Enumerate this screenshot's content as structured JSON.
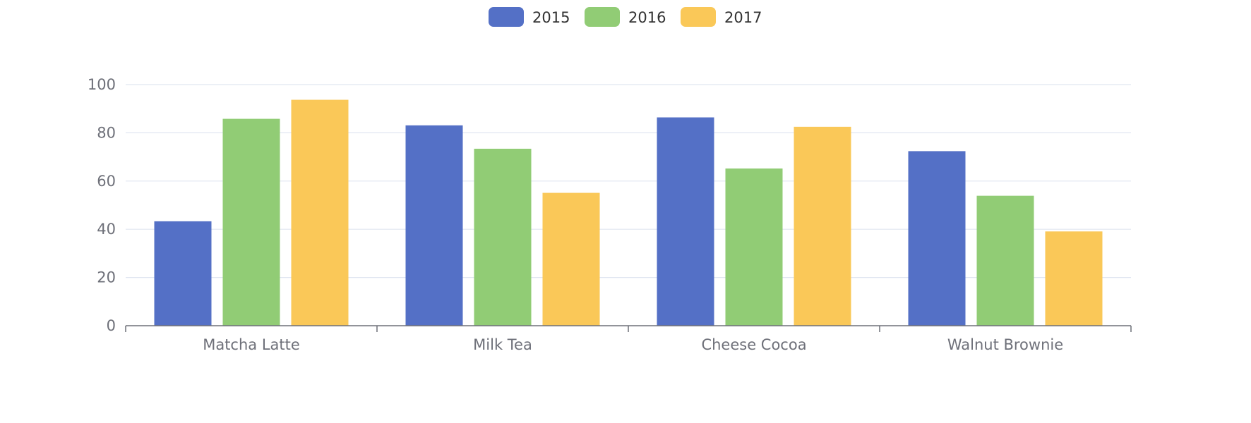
{
  "chart_data": {
    "type": "bar",
    "categories": [
      "Matcha Latte",
      "Milk Tea",
      "Cheese Cocoa",
      "Walnut Brownie"
    ],
    "series": [
      {
        "name": "2015",
        "color": "#5470c6",
        "values": [
          43.3,
          83.1,
          86.4,
          72.4
        ]
      },
      {
        "name": "2016",
        "color": "#91cc75",
        "values": [
          85.8,
          73.4,
          65.2,
          53.9
        ]
      },
      {
        "name": "2017",
        "color": "#fac858",
        "values": [
          93.7,
          55.1,
          82.5,
          39.1
        ]
      }
    ],
    "y_ticks": [
      "0",
      "20",
      "40",
      "60",
      "80",
      "100"
    ],
    "ylim": [
      0,
      100
    ],
    "title": "",
    "xlabel": "",
    "ylabel": "",
    "grid": true,
    "legend_position": "top-center"
  }
}
